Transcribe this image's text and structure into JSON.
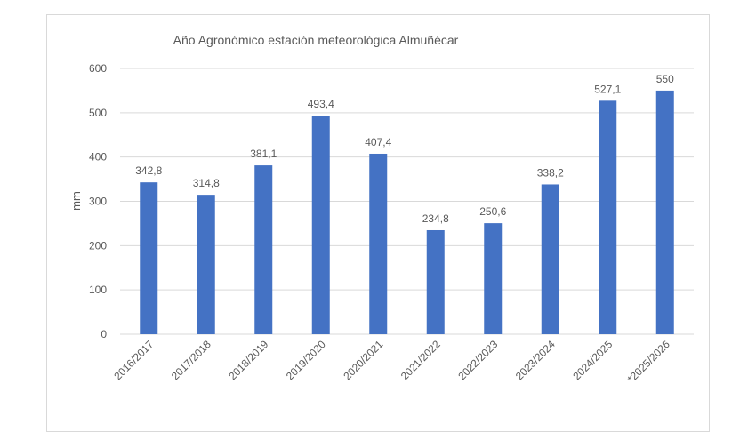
{
  "chart_data": {
    "type": "bar",
    "title": "Año Agronómico estación meteorológica Almuñécar",
    "xlabel": "",
    "ylabel": "mm",
    "ylim": [
      0,
      600
    ],
    "yticks": [
      0,
      100,
      200,
      300,
      400,
      500,
      600
    ],
    "grid": true,
    "legend": "none",
    "bar_color": "#4472c4",
    "categories": [
      "2016/2017",
      "2017/2018",
      "2018/2019",
      "2019/2020",
      "2020/2021",
      "2021/2022",
      "2022/2023",
      "2023/2024",
      "2024/2025",
      "*2025/2026"
    ],
    "values": [
      342.8,
      314.8,
      381.1,
      493.4,
      407.4,
      234.8,
      250.6,
      338.2,
      527.1,
      550
    ],
    "data_labels": [
      "342,8",
      "314,8",
      "381,1",
      "493,4",
      "407,4",
      "234,8",
      "250,6",
      "338,2",
      "527,1",
      "550"
    ]
  }
}
